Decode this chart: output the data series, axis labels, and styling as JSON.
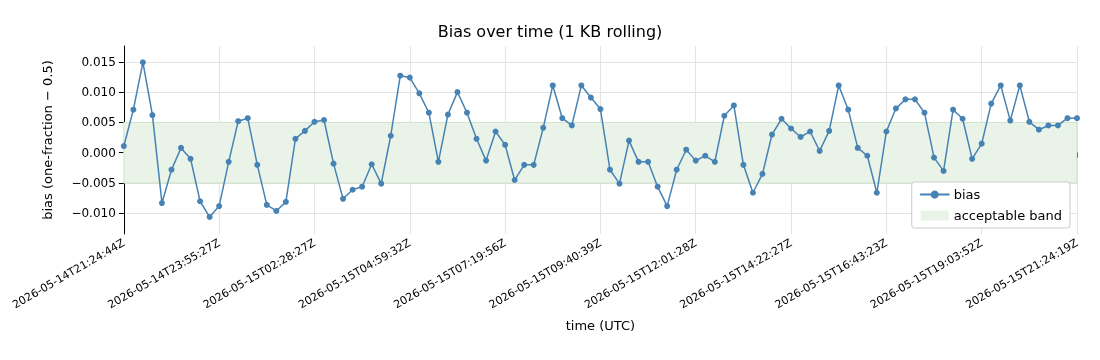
{
  "chart_data": {
    "type": "line",
    "title": "Bias over time (1 KB rolling)",
    "xlabel": "time (UTC)",
    "ylabel": "bias (one-fraction − 0.5)",
    "categories": [
      "2026-05-14T21:24:44Z",
      null,
      null,
      null,
      null,
      null,
      null,
      null,
      null,
      null,
      "2026-05-14T23:55:27Z",
      null,
      null,
      null,
      null,
      null,
      null,
      null,
      null,
      null,
      "2026-05-15T02:28:27Z",
      null,
      null,
      null,
      null,
      null,
      null,
      null,
      null,
      null,
      "2026-05-15T04:59:32Z",
      null,
      null,
      null,
      null,
      null,
      null,
      null,
      null,
      null,
      "2026-05-15T07:19:56Z",
      null,
      null,
      null,
      null,
      null,
      null,
      null,
      null,
      null,
      "2026-05-15T09:40:39Z",
      null,
      null,
      null,
      null,
      null,
      null,
      null,
      null,
      null,
      "2026-05-15T12:01:28Z",
      null,
      null,
      null,
      null,
      null,
      null,
      null,
      null,
      null,
      "2026-05-15T14:22:27Z",
      null,
      null,
      null,
      null,
      null,
      null,
      null,
      null,
      null,
      "2026-05-15T16:43:23Z",
      null,
      null,
      null,
      null,
      null,
      null,
      null,
      null,
      null,
      "2026-05-15T19:03:52Z",
      null,
      null,
      null,
      null,
      null,
      null,
      null,
      null,
      null,
      "2026-05-15T21:24:19Z"
    ],
    "series": [
      {
        "name": "bias",
        "color": "#4682b4",
        "values": [
          0.0011,
          0.0071,
          0.0149,
          0.0062,
          -0.0083,
          -0.0028,
          0.0008,
          -0.001,
          -0.008,
          -0.0106,
          -0.0088,
          -0.0015,
          0.0052,
          0.0057,
          -0.002,
          -0.0086,
          -0.0096,
          -0.0081,
          0.0023,
          0.0036,
          0.0051,
          0.0054,
          -0.0018,
          -0.0076,
          -0.0061,
          -0.0056,
          -0.0019,
          -0.0051,
          0.0028,
          0.0127,
          0.0124,
          0.0098,
          0.0066,
          -0.0015,
          0.0063,
          0.01,
          0.0066,
          0.0023,
          -0.0013,
          0.0035,
          0.0013,
          -0.0045,
          -0.002,
          -0.002,
          0.0041,
          0.0111,
          0.0057,
          0.0045,
          0.0111,
          0.0091,
          0.0072,
          -0.0028,
          -0.0051,
          0.002,
          -0.0015,
          -0.0015,
          -0.0056,
          -0.0088,
          -0.0028,
          0.0005,
          -0.0013,
          -0.0005,
          -0.0015,
          0.0061,
          0.0078,
          -0.002,
          -0.0066,
          -0.0035,
          0.003,
          0.0056,
          0.004,
          0.0026,
          0.0035,
          0.0003,
          0.0036,
          0.0111,
          0.0071,
          0.0008,
          -0.0005,
          -0.0066,
          0.0035,
          0.0073,
          0.0088,
          0.0088,
          0.0066,
          -0.0008,
          -0.003,
          0.0071,
          0.0056,
          -0.001,
          0.0015,
          0.0081,
          0.0111,
          0.0053,
          0.0111,
          0.0051,
          0.0038,
          0.0045,
          0.0045,
          0.0057,
          0.0057
        ]
      }
    ],
    "ylim": [
      -0.0134,
      0.0176
    ],
    "yticks": [
      {
        "value": -0.01,
        "label": "−0.010"
      },
      {
        "value": -0.005,
        "label": "−0.005"
      },
      {
        "value": 0,
        "label": "0.000"
      },
      {
        "value": 0.005,
        "label": "0.005"
      },
      {
        "value": 0.01,
        "label": "0.010"
      },
      {
        "value": 0.015,
        "label": "0.015"
      }
    ],
    "bands": [
      {
        "axis": "y",
        "from": -0.005,
        "to": 0.005,
        "label": "acceptable band",
        "color": "#e9f3e7"
      }
    ],
    "grid": true,
    "legend": "bottom right",
    "marker": "circle",
    "line_style": "solid"
  }
}
